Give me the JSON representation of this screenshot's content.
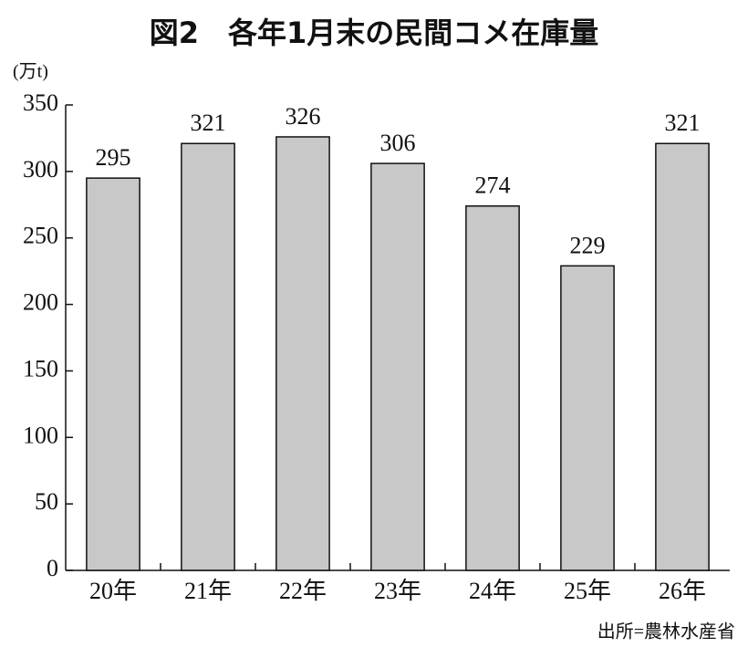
{
  "chart_data": {
    "type": "bar",
    "title": "図2　各年1月末の民間コメ在庫量",
    "y_label": "(万t)",
    "source": "出所=農林水産省",
    "categories": [
      "20年",
      "21年",
      "22年",
      "23年",
      "24年",
      "25年",
      "26年"
    ],
    "values": [
      295,
      321,
      326,
      306,
      274,
      229,
      321
    ],
    "color": "#c8c8c8",
    "ylim": [
      0,
      350
    ],
    "yticks": [
      0,
      50,
      100,
      150,
      200,
      250,
      300,
      350
    ],
    "grid": false
  }
}
